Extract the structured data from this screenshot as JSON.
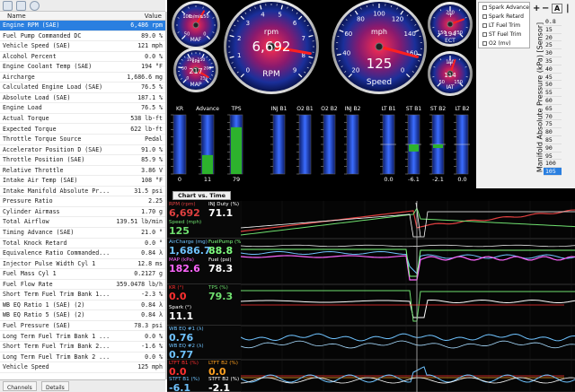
{
  "left": {
    "header": {
      "name": "Name",
      "value": "Value"
    },
    "rows": [
      {
        "name": "Engine RPM (SAE)",
        "value": "6,486 rpm"
      },
      {
        "name": "Fuel Pump Commanded DC",
        "value": "89.0 %"
      },
      {
        "name": "Vehicle Speed (SAE)",
        "value": "121 mph"
      },
      {
        "name": "Alcohol Percent",
        "value": "0.0 %"
      },
      {
        "name": "Engine Coolant Temp (SAE)",
        "value": "194 °F"
      },
      {
        "name": "Aircharge",
        "value": "1,686.6 mg"
      },
      {
        "name": "Calculated Engine Load (SAE)",
        "value": "76.5 %"
      },
      {
        "name": "Absolute Load (SAE)",
        "value": "187.1 %"
      },
      {
        "name": "Engine Load",
        "value": "76.5 %"
      },
      {
        "name": "Actual Torque",
        "value": "538 lb-ft"
      },
      {
        "name": "Expected Torque",
        "value": "622 lb-ft"
      },
      {
        "name": "Throttle Torque Source",
        "value": "Pedal"
      },
      {
        "name": "Accelerator Position D (SAE)",
        "value": "91.0 %"
      },
      {
        "name": "Throttle Position (SAE)",
        "value": "85.9 %"
      },
      {
        "name": "Relative Throttle",
        "value": "3.86 V"
      },
      {
        "name": "Intake Air Temp (SAE)",
        "value": "108 °F"
      },
      {
        "name": "Intake Manifold Absolute Pr...",
        "value": "31.5 psi"
      },
      {
        "name": "Pressure Ratio",
        "value": "2.25"
      },
      {
        "name": "Cylinder Airmass",
        "value": "1.70 g"
      },
      {
        "name": "Total Airflow",
        "value": "139.51 lb/min"
      },
      {
        "name": "Timing Advance (SAE)",
        "value": "21.0 °"
      },
      {
        "name": "Total Knock Retard",
        "value": "0.0 °"
      },
      {
        "name": "Equivalence Ratio Commanded...",
        "value": "0.84 λ"
      },
      {
        "name": "Injector Pulse Width Cyl 1",
        "value": "12.8 ms"
      },
      {
        "name": "Fuel Mass Cyl 1",
        "value": "0.2127 g"
      },
      {
        "name": "Fuel Flow Rate",
        "value": "359.0478 lb/h"
      },
      {
        "name": "Short Term Fuel Trim Bank 1...",
        "value": "-2.3 %"
      },
      {
        "name": "WB EQ Ratio 1 (SAE) (2)",
        "value": "0.84 λ"
      },
      {
        "name": "WB EQ Ratio 5 (SAE) (2)",
        "value": "0.84 λ"
      },
      {
        "name": "Fuel Pressure (SAE)",
        "value": "78.3 psi"
      },
      {
        "name": "Long Term Fuel Trim Bank 1 ...",
        "value": "0.0 %"
      },
      {
        "name": "Short Term Fuel Trim Bank 2...",
        "value": "-1.6 %"
      },
      {
        "name": "Long Term Fuel Trim Bank 2 ...",
        "value": "0.0 %"
      },
      {
        "name": "Vehicle Speed",
        "value": "125 mph"
      }
    ],
    "tabs": [
      "Channels",
      "Details"
    ]
  },
  "gauges": {
    "maf": {
      "label": "lb/min",
      "name": "MAF",
      "ticks": [
        "50",
        "100",
        "150",
        "0"
      ]
    },
    "map": {
      "label": "kPa",
      "name": "MAP",
      "value": "217",
      "ticks": [
        "0",
        "50",
        "100",
        "150",
        "200",
        "250"
      ]
    },
    "rpm": {
      "label": "rpm",
      "name": "RPM",
      "value": "6,692",
      "ticks": [
        "0",
        "1",
        "2",
        "3",
        "4",
        "5",
        "6",
        "7",
        "8",
        "9"
      ]
    },
    "speed": {
      "label": "mph",
      "name": "Speed",
      "value": "125",
      "ticks": [
        "20",
        "40",
        "60",
        "80",
        "100",
        "120",
        "140",
        "160",
        "0"
      ]
    },
    "ect": {
      "label": "°F",
      "name": "ECT",
      "value": "194",
      "ticks": [
        "150",
        "200",
        "250"
      ]
    },
    "iat": {
      "label": "°F",
      "name": "IAT",
      "value": "114",
      "ticks": [
        "50",
        "100",
        "150"
      ]
    },
    "bars": [
      {
        "title": "KR",
        "value": "0",
        "fill": 0.0,
        "color": "#2db22d"
      },
      {
        "title": "Advance",
        "value": "11",
        "fill": 0.32,
        "color": "#2db22d"
      },
      {
        "title": "TPS",
        "value": "79",
        "fill": 0.79,
        "color": "#2db22d"
      },
      {
        "title": "INJ B1",
        "value": "",
        "fill": 0.0,
        "color": "#2db22d"
      },
      {
        "title": "O2 B1",
        "value": "",
        "fill": 0.0,
        "color": "#2db22d"
      },
      {
        "title": "O2 B2",
        "value": "",
        "fill": 0.0,
        "color": "#2db22d"
      },
      {
        "title": "INJ B2",
        "value": "",
        "fill": 0.0,
        "color": "#2db22d"
      },
      {
        "title": "LT B1",
        "value": "0.0",
        "fill": 0.0,
        "color": "#2db22d"
      },
      {
        "title": "ST B1",
        "value": "-6.1",
        "fill": -0.12,
        "color": "#2db22d"
      },
      {
        "title": "ST B2",
        "value": "-2.1",
        "fill": -0.04,
        "color": "#2db22d"
      },
      {
        "title": "LT B2",
        "value": "0.0",
        "fill": 0.0,
        "color": "#2db22d"
      }
    ]
  },
  "right": {
    "legend": [
      "Spark Advance",
      "Spark Retard",
      "LT Fuel Trim",
      "ST Fuel Trim",
      "O2 (mv)"
    ],
    "buttons": [
      "+",
      "−",
      "A",
      "|"
    ],
    "axis_title": "Manifold Absolute Pressure (kPa) [Sensor]",
    "numbers": [
      "0.8",
      "15",
      "20",
      "25",
      "30",
      "35",
      "40",
      "45",
      "50",
      "55",
      "60",
      "65",
      "70",
      "75",
      "80",
      "85",
      "90",
      "95",
      "100",
      "105"
    ]
  },
  "chart": {
    "tab": "Chart vs. Time",
    "blocks": [
      {
        "lines": [
          {
            "label": "RPM (rpm)",
            "value": "6,692",
            "color": "#e04040"
          },
          {
            "label": "INJ Duty (%)",
            "value": "71.1",
            "color": "#ffffff"
          },
          {
            "label": "Speed (mph)",
            "value": "125",
            "color": "#6fe06f"
          }
        ]
      },
      {
        "lines": [
          {
            "label": "AirCharge (mg)",
            "value": "1,686.7",
            "color": "#6fc3ff"
          },
          {
            "label": "FuelPump (%)",
            "value": "88.8",
            "color": "#7fff7f"
          },
          {
            "label": "MAP (kPa)",
            "value": "182.6",
            "color": "#ff66ff"
          },
          {
            "label": "Fuel (psi)",
            "value": "78.3",
            "color": "#ffffff"
          }
        ]
      },
      {
        "lines": [
          {
            "label": "KR (°)",
            "value": "0.0",
            "color": "#ff3030"
          },
          {
            "label": "TPS (%)",
            "value": "79.3",
            "color": "#6fe06f"
          },
          {
            "label": "Spark (°)",
            "value": "11.1",
            "color": "#ffffff"
          }
        ]
      },
      {
        "lines": [
          {
            "label": "WB EQ #1 (λ)",
            "value": "0.76",
            "color": "#6fc3ff"
          },
          {
            "label": "WB EQ #2 (λ)",
            "value": "0.77",
            "color": "#6fc3ff"
          }
        ]
      },
      {
        "lines": [
          {
            "label": "LTFT B1 (%)",
            "value": "0.0",
            "color": "#ff3030"
          },
          {
            "label": "LTFT B2 (%)",
            "value": "0.0",
            "color": "#ffa020"
          },
          {
            "label": "STFT B1 (%)",
            "value": "-6.1",
            "color": "#6fc3ff"
          },
          {
            "label": "STFT B2 (%)",
            "value": "-2.1",
            "color": "#ffffff"
          }
        ]
      }
    ]
  }
}
